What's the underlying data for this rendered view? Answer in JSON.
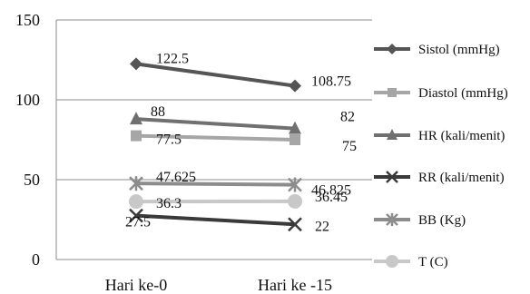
{
  "chart_data": {
    "type": "line",
    "title": "",
    "xlabel": "",
    "ylabel": "",
    "ylim": [
      0,
      150
    ],
    "yticks": [
      0,
      50,
      100,
      150
    ],
    "grid": true,
    "legend_position": "right",
    "categories": [
      "Hari ke-0",
      "Hari ke -15"
    ],
    "series": [
      {
        "name": "Sistol (mmHg)",
        "values": [
          122.5,
          108.75
        ],
        "labels": [
          "122.5",
          "108.75"
        ],
        "color": "#555555",
        "marker": "diamond"
      },
      {
        "name": "Diastol (mmHg)",
        "values": [
          77.5,
          75
        ],
        "labels": [
          "77.5",
          "75"
        ],
        "color": "#a6a6a6",
        "marker": "square"
      },
      {
        "name": "HR (kali/menit)",
        "values": [
          88,
          82
        ],
        "labels": [
          "88",
          "82"
        ],
        "color": "#707070",
        "marker": "triangle"
      },
      {
        "name": "RR (kali/menit)",
        "values": [
          27.5,
          22
        ],
        "labels": [
          "27.5",
          "22"
        ],
        "color": "#3a3a3a",
        "marker": "x"
      },
      {
        "name": "BB (Kg)",
        "values": [
          47.625,
          46.825
        ],
        "labels": [
          "47.625",
          "46.825"
        ],
        "color": "#8c8c8c",
        "marker": "star"
      },
      {
        "name": "T (C)",
        "values": [
          36.3,
          36.45
        ],
        "labels": [
          "36.3",
          "36.45"
        ],
        "color": "#c8c8c8",
        "marker": "circle"
      }
    ]
  }
}
